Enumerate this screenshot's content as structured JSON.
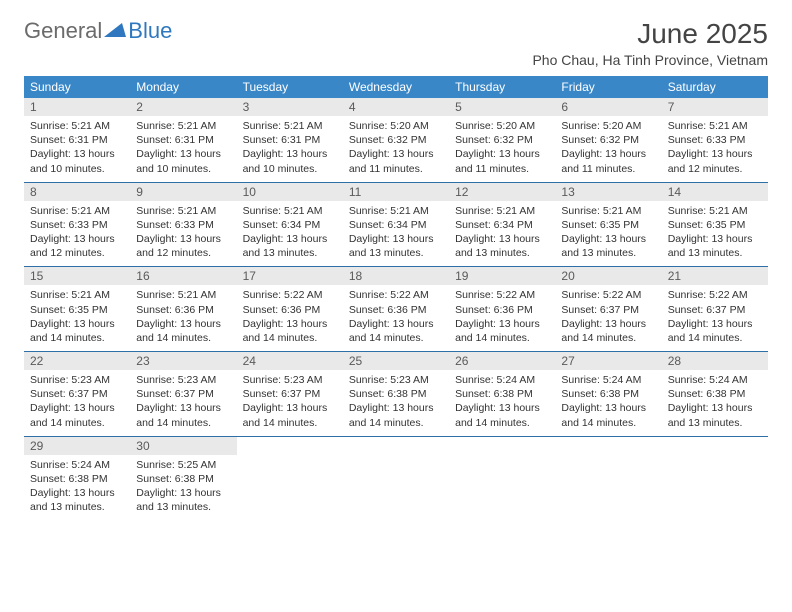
{
  "logo": {
    "text1": "General",
    "text2": "Blue"
  },
  "header": {
    "month_title": "June 2025",
    "location": "Pho Chau, Ha Tinh Province, Vietnam"
  },
  "colors": {
    "header_bg": "#3a87c8",
    "header_text": "#ffffff",
    "row_border": "#2f6fa8",
    "daynum_bg": "#e9e9e9",
    "logo_gray": "#6b6b6b",
    "logo_blue": "#2f78bf"
  },
  "weekdays": [
    "Sunday",
    "Monday",
    "Tuesday",
    "Wednesday",
    "Thursday",
    "Friday",
    "Saturday"
  ],
  "days": [
    {
      "n": "1",
      "sunrise": "5:21 AM",
      "sunset": "6:31 PM",
      "daylight": "13 hours and 10 minutes."
    },
    {
      "n": "2",
      "sunrise": "5:21 AM",
      "sunset": "6:31 PM",
      "daylight": "13 hours and 10 minutes."
    },
    {
      "n": "3",
      "sunrise": "5:21 AM",
      "sunset": "6:31 PM",
      "daylight": "13 hours and 10 minutes."
    },
    {
      "n": "4",
      "sunrise": "5:20 AM",
      "sunset": "6:32 PM",
      "daylight": "13 hours and 11 minutes."
    },
    {
      "n": "5",
      "sunrise": "5:20 AM",
      "sunset": "6:32 PM",
      "daylight": "13 hours and 11 minutes."
    },
    {
      "n": "6",
      "sunrise": "5:20 AM",
      "sunset": "6:32 PM",
      "daylight": "13 hours and 11 minutes."
    },
    {
      "n": "7",
      "sunrise": "5:21 AM",
      "sunset": "6:33 PM",
      "daylight": "13 hours and 12 minutes."
    },
    {
      "n": "8",
      "sunrise": "5:21 AM",
      "sunset": "6:33 PM",
      "daylight": "13 hours and 12 minutes."
    },
    {
      "n": "9",
      "sunrise": "5:21 AM",
      "sunset": "6:33 PM",
      "daylight": "13 hours and 12 minutes."
    },
    {
      "n": "10",
      "sunrise": "5:21 AM",
      "sunset": "6:34 PM",
      "daylight": "13 hours and 13 minutes."
    },
    {
      "n": "11",
      "sunrise": "5:21 AM",
      "sunset": "6:34 PM",
      "daylight": "13 hours and 13 minutes."
    },
    {
      "n": "12",
      "sunrise": "5:21 AM",
      "sunset": "6:34 PM",
      "daylight": "13 hours and 13 minutes."
    },
    {
      "n": "13",
      "sunrise": "5:21 AM",
      "sunset": "6:35 PM",
      "daylight": "13 hours and 13 minutes."
    },
    {
      "n": "14",
      "sunrise": "5:21 AM",
      "sunset": "6:35 PM",
      "daylight": "13 hours and 13 minutes."
    },
    {
      "n": "15",
      "sunrise": "5:21 AM",
      "sunset": "6:35 PM",
      "daylight": "13 hours and 14 minutes."
    },
    {
      "n": "16",
      "sunrise": "5:21 AM",
      "sunset": "6:36 PM",
      "daylight": "13 hours and 14 minutes."
    },
    {
      "n": "17",
      "sunrise": "5:22 AM",
      "sunset": "6:36 PM",
      "daylight": "13 hours and 14 minutes."
    },
    {
      "n": "18",
      "sunrise": "5:22 AM",
      "sunset": "6:36 PM",
      "daylight": "13 hours and 14 minutes."
    },
    {
      "n": "19",
      "sunrise": "5:22 AM",
      "sunset": "6:36 PM",
      "daylight": "13 hours and 14 minutes."
    },
    {
      "n": "20",
      "sunrise": "5:22 AM",
      "sunset": "6:37 PM",
      "daylight": "13 hours and 14 minutes."
    },
    {
      "n": "21",
      "sunrise": "5:22 AM",
      "sunset": "6:37 PM",
      "daylight": "13 hours and 14 minutes."
    },
    {
      "n": "22",
      "sunrise": "5:23 AM",
      "sunset": "6:37 PM",
      "daylight": "13 hours and 14 minutes."
    },
    {
      "n": "23",
      "sunrise": "5:23 AM",
      "sunset": "6:37 PM",
      "daylight": "13 hours and 14 minutes."
    },
    {
      "n": "24",
      "sunrise": "5:23 AM",
      "sunset": "6:37 PM",
      "daylight": "13 hours and 14 minutes."
    },
    {
      "n": "25",
      "sunrise": "5:23 AM",
      "sunset": "6:38 PM",
      "daylight": "13 hours and 14 minutes."
    },
    {
      "n": "26",
      "sunrise": "5:24 AM",
      "sunset": "6:38 PM",
      "daylight": "13 hours and 14 minutes."
    },
    {
      "n": "27",
      "sunrise": "5:24 AM",
      "sunset": "6:38 PM",
      "daylight": "13 hours and 14 minutes."
    },
    {
      "n": "28",
      "sunrise": "5:24 AM",
      "sunset": "6:38 PM",
      "daylight": "13 hours and 13 minutes."
    },
    {
      "n": "29",
      "sunrise": "5:24 AM",
      "sunset": "6:38 PM",
      "daylight": "13 hours and 13 minutes."
    },
    {
      "n": "30",
      "sunrise": "5:25 AM",
      "sunset": "6:38 PM",
      "daylight": "13 hours and 13 minutes."
    }
  ],
  "labels": {
    "sunrise": "Sunrise: ",
    "sunset": "Sunset: ",
    "daylight": "Daylight: "
  }
}
